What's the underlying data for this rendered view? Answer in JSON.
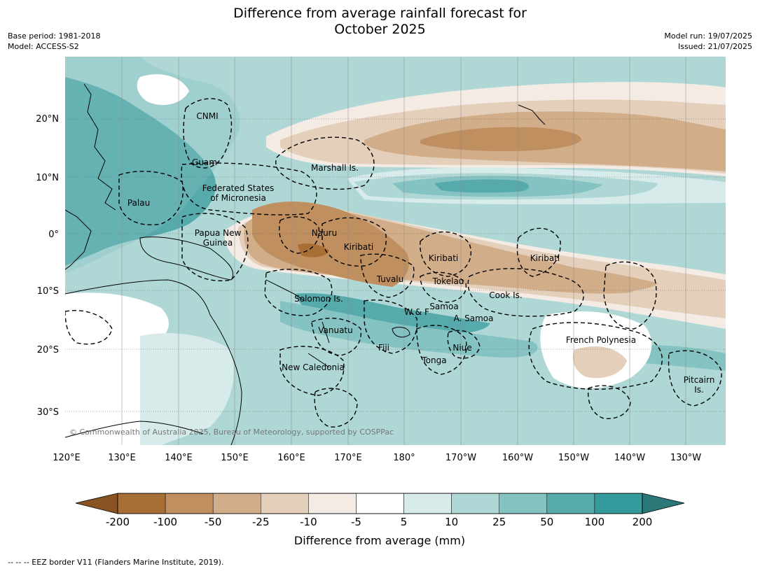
{
  "title_line1": "Difference from average rainfall forecast for",
  "title_line2": "October 2025",
  "meta_left": [
    "Base period: 1981-2018",
    "Model: ACCESS-S2"
  ],
  "meta_right": [
    "Model run: 19/07/2025",
    "Issued: 21/07/2025"
  ],
  "copyright": "© Commonwealth of Australia 2025, Bureau of Meteorology, supported by COSPPac",
  "lat_labels": [
    "20°N",
    "10°N",
    "0°",
    "10°S",
    "20°S",
    "30°S"
  ],
  "lon_labels": [
    "120°E",
    "130°E",
    "140°E",
    "150°E",
    "160°E",
    "170°E",
    "180°",
    "170°W",
    "160°W",
    "150°W",
    "140°W",
    "130°W"
  ],
  "places": {
    "cnmi": "CNMI",
    "guam": "Guam",
    "marshall": "Marshall Is.",
    "fsm1": "Federated States",
    "fsm2": "of Micronesia",
    "palau": "Palau",
    "png1": "Papua New",
    "png2": "Guinea",
    "nauru": "Nauru",
    "kiribati_w": "Kiribati",
    "kiribati_c": "Kiribati",
    "kiribati_e": "Kiribati",
    "tuvalu": "Tuvalu",
    "tokelau": "Tokelau",
    "cook": "Cook Is.",
    "solomon": "Solomon Is.",
    "samoa": "Samoa",
    "wf": "W & F",
    "asamoa": "A. Samoa",
    "vanuatu": "Vanuatu",
    "fiji": "Fiji",
    "niue": "Niue",
    "tonga": "Tonga",
    "newcal": "New Caledonia",
    "fp": "French Polynesia",
    "pitcairn1": "Pitcairn",
    "pitcairn2": "Is."
  },
  "colorbar": {
    "labels": [
      "-200",
      "-100",
      "-50",
      "-25",
      "-10",
      "-5",
      "5",
      "10",
      "25",
      "50",
      "100",
      "200"
    ],
    "colors": [
      "#a86f35",
      "#bf8f60",
      "#d2ad8a",
      "#e4cfba",
      "#f4ebe4",
      "#ffffff",
      "#d6ebea",
      "#aed7d6",
      "#85c2c2",
      "#57aaab",
      "#349a9b"
    ],
    "under_color": "#8a5422",
    "over_color": "#2b7879",
    "title": "Difference from average (mm)"
  },
  "footer": "--  --  -- EEZ border V11 (Flanders Marine Institute, 2019)."
}
